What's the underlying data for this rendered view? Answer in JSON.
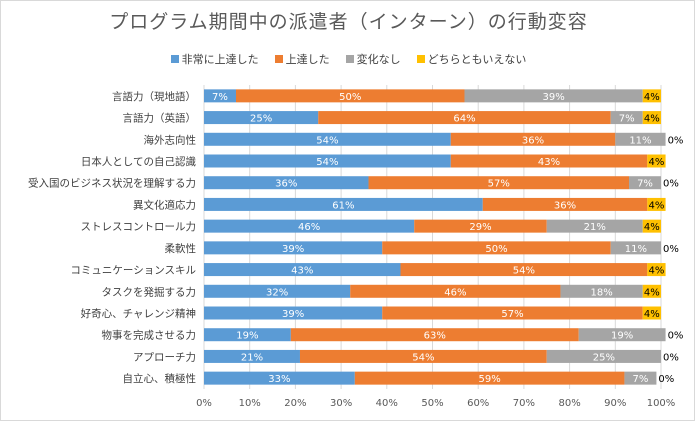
{
  "chart_data": {
    "type": "bar",
    "orientation": "horizontal",
    "stacked": "percent",
    "title": "プログラム期間中の派遣者（インターン）の行動変容",
    "categories": [
      "言語力（現地語）",
      "言語力（英語）",
      "海外志向性",
      "日本人としての自己認識",
      "受入国のビジネス状況を理解する力",
      "異文化適応力",
      "ストレスコントロール力",
      "柔軟性",
      "コミュニケーションスキル",
      "タスクを発掘する力",
      "好奇心、チャレンジ精神",
      "物事を完成させる力",
      "アプローチ力",
      "自立心、積極性"
    ],
    "series": [
      {
        "name": "非常に上達した",
        "color": "#5B9BD5",
        "values": [
          7,
          25,
          54,
          54,
          36,
          61,
          46,
          39,
          43,
          32,
          39,
          19,
          21,
          33
        ]
      },
      {
        "name": "上達した",
        "color": "#ED7D31",
        "values": [
          50,
          64,
          36,
          43,
          57,
          36,
          29,
          50,
          54,
          46,
          57,
          63,
          54,
          59
        ]
      },
      {
        "name": "変化なし",
        "color": "#A5A5A5",
        "values": [
          39,
          7,
          11,
          0,
          7,
          0,
          21,
          11,
          0,
          18,
          0,
          19,
          25,
          7
        ]
      },
      {
        "name": "どちらともいえない",
        "color": "#FFC000",
        "values": [
          4,
          4,
          0,
          4,
          0,
          4,
          4,
          0,
          4,
          4,
          4,
          0,
          0,
          0
        ]
      }
    ],
    "xticks": [
      "0%",
      "10%",
      "20%",
      "30%",
      "40%",
      "50%",
      "60%",
      "70%",
      "80%",
      "90%",
      "100%"
    ],
    "xlim": [
      0,
      100
    ],
    "grid": true,
    "legend_position": "top"
  }
}
